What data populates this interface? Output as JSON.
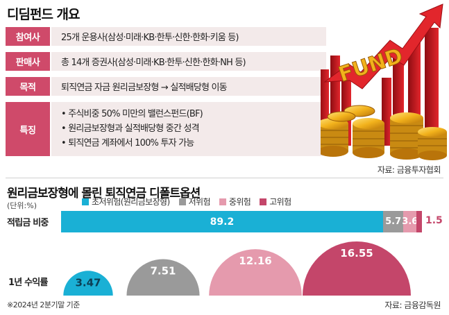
{
  "header": {
    "title": "디딤펀드 개요"
  },
  "info_rows": [
    {
      "label": "참여사",
      "value": "25개 운용사(삼성·미래·KB·한투·신한·한화·키움 등)"
    },
    {
      "label": "판매사",
      "value": "총 14개 증권사(삼성·미래·KB·한투·신한·한화·NH 등)"
    },
    {
      "label": "목적",
      "value": "퇴직연금 자금 원리금보장형 → 실적배당형 이동"
    }
  ],
  "features": {
    "label": "특징",
    "lines": [
      "• 주식비중 50% 미만의 밸런스펀드(BF)",
      "• 원리금보장형과 실적배당형 중간 성격",
      "• 퇴직연금 계좌에서 100% 투자 가능"
    ]
  },
  "illustration": {
    "word": "FUND",
    "icon": "fund-coins-arrow-illustration"
  },
  "source_top": "자료: 금융투자협회",
  "chart_data": {
    "type": "bar",
    "title": "원리금보장형에 몰린 퇴직연금 디폴트옵션",
    "unit": "(단위:%)",
    "categories": [
      "초저위험(원리금보장형)",
      "저위험",
      "중위험",
      "고위험"
    ],
    "colors": [
      "#1ab0d5",
      "#9a9a9a",
      "#e59aad",
      "#c4466a"
    ],
    "series": [
      {
        "name": "적립금 비중",
        "values": [
          89.2,
          5.7,
          3.6,
          1.5
        ]
      },
      {
        "name": "1년 수익률",
        "values": [
          3.47,
          7.51,
          12.16,
          16.55
        ]
      }
    ],
    "footnote": "※2024년 2분기말 기준",
    "source": "자료: 금융감독원"
  }
}
